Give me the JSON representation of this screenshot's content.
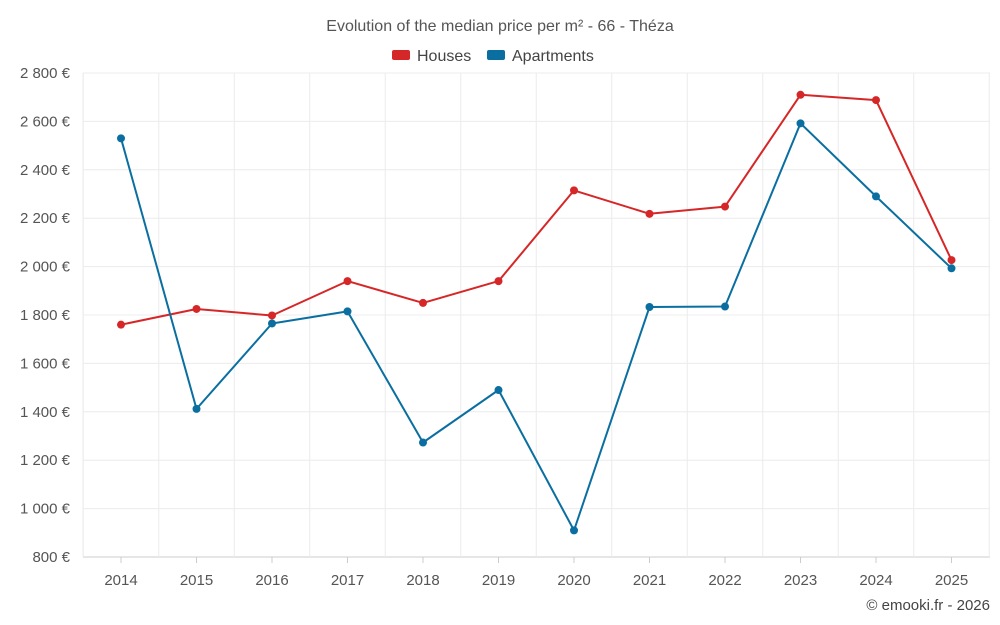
{
  "chart_data": {
    "type": "line",
    "title": "Evolution of the median price per m² - 66 - Théza",
    "categories": [
      "2014",
      "2015",
      "2016",
      "2017",
      "2018",
      "2019",
      "2020",
      "2021",
      "2022",
      "2023",
      "2024",
      "2025"
    ],
    "series": [
      {
        "name": "Houses",
        "color": "#d62728",
        "values": [
          1760,
          1825,
          1798,
          1940,
          1850,
          1940,
          2315,
          2218,
          2248,
          2710,
          2688,
          2027
        ]
      },
      {
        "name": "Apartments",
        "color": "#0a6fa0",
        "values": [
          2530,
          1412,
          1765,
          1815,
          1273,
          1490,
          910,
          1833,
          1835,
          2592,
          2290,
          1993
        ]
      }
    ],
    "ylim": [
      800,
      2800
    ],
    "yticks": [
      {
        "value": 800,
        "label": "800 €"
      },
      {
        "value": 1000,
        "label": "1 000 €"
      },
      {
        "value": 1200,
        "label": "1 200 €"
      },
      {
        "value": 1400,
        "label": "1 400 €"
      },
      {
        "value": 1600,
        "label": "1 600 €"
      },
      {
        "value": 1800,
        "label": "1 800 €"
      },
      {
        "value": 2000,
        "label": "2 000 €"
      },
      {
        "value": 2200,
        "label": "2 200 €"
      },
      {
        "value": 2400,
        "label": "2 400 €"
      },
      {
        "value": 2600,
        "label": "2 600 €"
      },
      {
        "value": 2800,
        "label": "2 800 €"
      }
    ],
    "xlabel": "",
    "ylabel": "",
    "grid": true,
    "legend_position": "top-center"
  },
  "credit": "© emooki.fr - 2026"
}
